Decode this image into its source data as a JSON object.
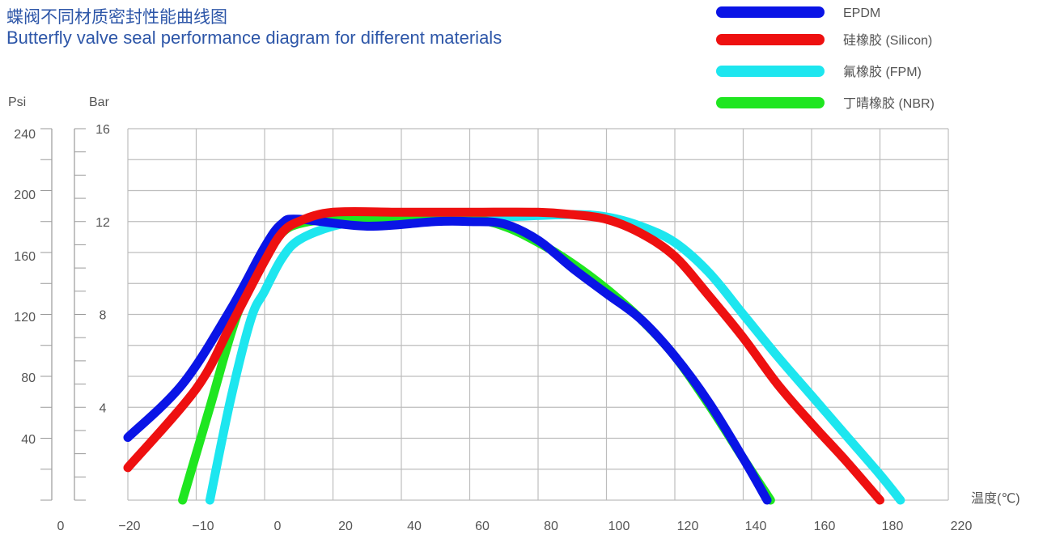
{
  "header": {
    "title_cn": "蝶阀不同材质密封性能曲线图",
    "title_en": "Butterfly valve seal performance diagram for different materials"
  },
  "chart_data": {
    "type": "line",
    "title": "蝶阀不同材质密封性能曲线图",
    "subtitle": "Butterfly valve seal performance diagram for different materials",
    "xlabel": "温度(℃)",
    "ylabel_left": "Psi",
    "ylabel_right": "Bar",
    "x_ticks": [
      "0",
      "−20",
      "−10",
      "0",
      "20",
      "40",
      "60",
      "80",
      "100",
      "120",
      "140",
      "160",
      "180",
      "220"
    ],
    "psi_ticks": [
      "240",
      "200",
      "160",
      "120",
      "80",
      "40"
    ],
    "bar_ticks": [
      "16",
      "12",
      "8",
      "4"
    ],
    "ylim_bar": [
      0,
      16
    ],
    "xlim": [
      -20,
      220
    ],
    "grid": true,
    "legend_position": "top-right",
    "series": [
      {
        "name": "EPDM",
        "color": "#0a14e6",
        "points": [
          [
            -20,
            2.7
          ],
          [
            -12,
            5.0
          ],
          [
            -5,
            8.2
          ],
          [
            0,
            10.9
          ],
          [
            5,
            11.9
          ],
          [
            10,
            12.1
          ],
          [
            30,
            11.8
          ],
          [
            50,
            12.0
          ],
          [
            60,
            12.0
          ],
          [
            70,
            11.9
          ],
          [
            80,
            11.2
          ],
          [
            90,
            10.0
          ],
          [
            100,
            8.9
          ],
          [
            110,
            7.8
          ],
          [
            120,
            6.2
          ],
          [
            130,
            4.2
          ],
          [
            140,
            1.8
          ],
          [
            147,
            0
          ]
        ]
      },
      {
        "name": "硅橡胶 (Silicon)",
        "color": "#ee1010",
        "points": [
          [
            -20,
            1.4
          ],
          [
            -10,
            4.8
          ],
          [
            -5,
            7.5
          ],
          [
            0,
            10.3
          ],
          [
            5,
            11.5
          ],
          [
            10,
            12.0
          ],
          [
            20,
            12.4
          ],
          [
            40,
            12.4
          ],
          [
            60,
            12.4
          ],
          [
            80,
            12.4
          ],
          [
            90,
            12.3
          ],
          [
            100,
            12.1
          ],
          [
            110,
            11.5
          ],
          [
            120,
            10.5
          ],
          [
            130,
            8.8
          ],
          [
            140,
            7.0
          ],
          [
            150,
            5.0
          ],
          [
            160,
            3.3
          ],
          [
            170,
            1.7
          ],
          [
            180,
            0
          ]
        ]
      },
      {
        "name": "氟橡胶 (FPM)",
        "color": "#1de6ef",
        "points": [
          [
            -8,
            0
          ],
          [
            -5,
            4.3
          ],
          [
            -2,
            7.8
          ],
          [
            0,
            9.0
          ],
          [
            5,
            10.4
          ],
          [
            10,
            11.2
          ],
          [
            20,
            11.8
          ],
          [
            30,
            12.0
          ],
          [
            50,
            12.1
          ],
          [
            70,
            12.2
          ],
          [
            90,
            12.3
          ],
          [
            100,
            12.2
          ],
          [
            110,
            11.8
          ],
          [
            120,
            11.1
          ],
          [
            130,
            9.8
          ],
          [
            140,
            8.0
          ],
          [
            150,
            6.2
          ],
          [
            160,
            4.5
          ],
          [
            170,
            2.8
          ],
          [
            180,
            1.1
          ],
          [
            186,
            0
          ]
        ]
      },
      {
        "name": "丁晴橡胶 (NBR)",
        "color": "#1fe620",
        "points": [
          [
            -12,
            0
          ],
          [
            -8,
            4.0
          ],
          [
            -4,
            8.0
          ],
          [
            0,
            10.5
          ],
          [
            5,
            11.5
          ],
          [
            10,
            11.9
          ],
          [
            20,
            12.1
          ],
          [
            40,
            12.1
          ],
          [
            60,
            12.1
          ],
          [
            70,
            11.8
          ],
          [
            80,
            11.1
          ],
          [
            90,
            10.2
          ],
          [
            100,
            9.1
          ],
          [
            110,
            7.8
          ],
          [
            120,
            6.2
          ],
          [
            130,
            4.1
          ],
          [
            140,
            1.8
          ],
          [
            148,
            0
          ]
        ]
      }
    ]
  }
}
